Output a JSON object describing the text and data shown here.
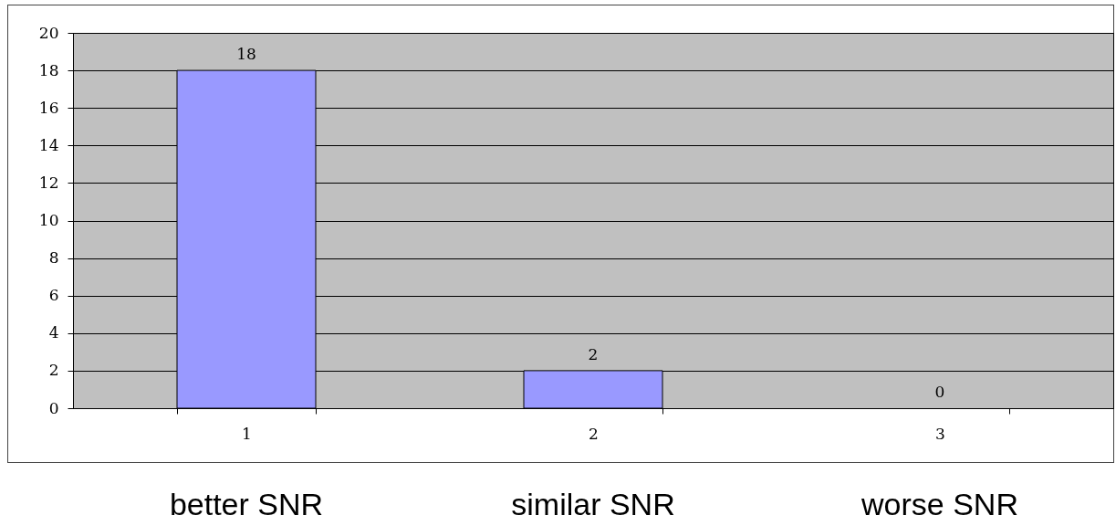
{
  "chart_data": {
    "type": "bar",
    "categories": [
      "1",
      "2",
      "3"
    ],
    "values": [
      18,
      2,
      0
    ],
    "color": "#9999ff",
    "ylim": [
      0,
      20
    ],
    "yticks": [
      0,
      2,
      4,
      6,
      8,
      10,
      12,
      14,
      16,
      18,
      20
    ],
    "grid": "y",
    "data_labels": true,
    "annotations": [
      "better SNR",
      "similar SNR",
      "worse SNR"
    ]
  }
}
